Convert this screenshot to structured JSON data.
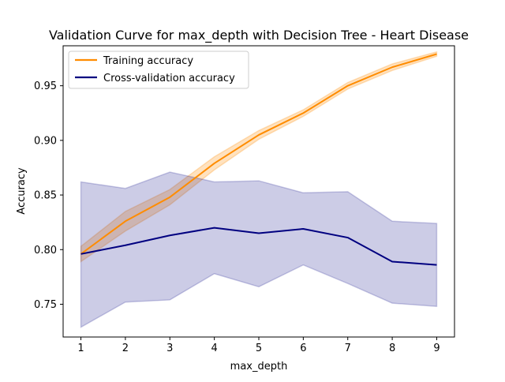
{
  "chart_data": {
    "type": "line",
    "title": "Validation Curve for max_depth with Decision Tree - Heart Disease",
    "xlabel": "max_depth",
    "ylabel": "Accuracy",
    "x": [
      1,
      2,
      3,
      4,
      5,
      6,
      7,
      8,
      9
    ],
    "xticks": [
      "1",
      "2",
      "3",
      "4",
      "5",
      "6",
      "7",
      "8",
      "9"
    ],
    "yticks": [
      "0.75",
      "0.80",
      "0.85",
      "0.90",
      "0.95"
    ],
    "xlim": [
      0.6,
      9.4
    ],
    "ylim": [
      0.72,
      0.9866
    ],
    "legend_position": "upper-left",
    "grid": false,
    "series": [
      {
        "name": "Training accuracy",
        "color": "#ff8c00",
        "values": [
          0.796,
          0.826,
          0.848,
          0.879,
          0.905,
          0.925,
          0.95,
          0.967,
          0.979
        ],
        "band_lower": [
          0.789,
          0.817,
          0.841,
          0.873,
          0.901,
          0.922,
          0.947,
          0.964,
          0.977
        ],
        "band_upper": [
          0.803,
          0.835,
          0.855,
          0.885,
          0.909,
          0.928,
          0.953,
          0.97,
          0.981
        ]
      },
      {
        "name": "Cross-validation accuracy",
        "color": "#000080",
        "values": [
          0.796,
          0.804,
          0.813,
          0.82,
          0.815,
          0.819,
          0.811,
          0.789,
          0.786
        ],
        "band_lower": [
          0.729,
          0.752,
          0.754,
          0.778,
          0.766,
          0.786,
          0.769,
          0.751,
          0.748
        ],
        "band_upper": [
          0.862,
          0.856,
          0.871,
          0.862,
          0.863,
          0.852,
          0.853,
          0.826,
          0.824
        ]
      }
    ]
  }
}
